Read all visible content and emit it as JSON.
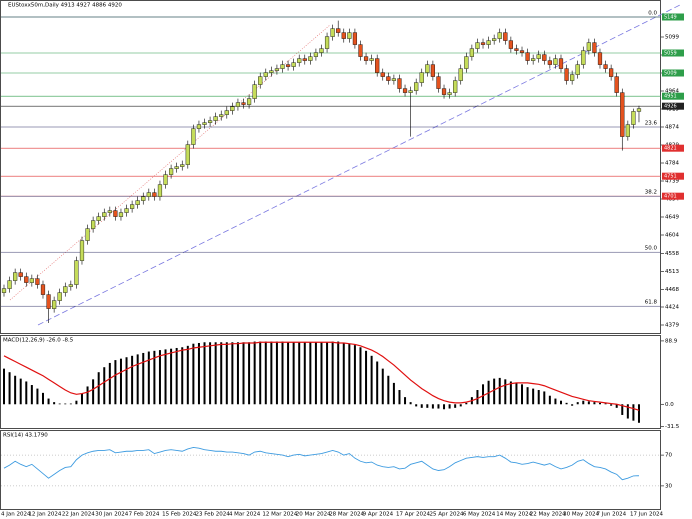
{
  "chart_data": [
    {
      "type": "candlestick",
      "title": "EUStoxx50m,Daily 4913 4927 4886 4920",
      "categories": [
        "4 Jan 2024",
        null,
        null,
        null,
        null,
        null,
        "12 Jan 2024",
        null,
        null,
        null,
        null,
        null,
        "22 Jan 2024",
        null,
        null,
        null,
        null,
        null,
        "30 Jan 2024",
        null,
        null,
        null,
        null,
        null,
        "7 Feb 2024",
        null,
        null,
        null,
        null,
        null,
        "15 Feb 2024",
        null,
        null,
        null,
        null,
        null,
        "23 Feb 2024",
        null,
        null,
        null,
        null,
        null,
        "4 Mar 2024",
        null,
        null,
        null,
        null,
        null,
        "12 Mar 2024",
        null,
        null,
        null,
        null,
        null,
        "20 Mar 2024",
        null,
        null,
        null,
        null,
        null,
        "28 Mar 2024",
        null,
        null,
        null,
        null,
        null,
        "9 Apr 2024",
        null,
        null,
        null,
        null,
        null,
        "17 Apr 2024",
        null,
        null,
        null,
        null,
        null,
        "25 Apr 2024",
        null,
        null,
        null,
        null,
        null,
        "6 May 2024",
        null,
        null,
        null,
        null,
        null,
        "14 May 2024",
        null,
        null,
        null,
        null,
        null,
        "22 May 2024",
        null,
        null,
        null,
        null,
        null,
        "30 May 2024",
        null,
        null,
        null,
        null,
        null,
        "7 Jun 2024",
        null,
        null,
        null,
        null,
        null,
        "17 Jun 2024"
      ],
      "open": [
        4460,
        4470,
        4490,
        4510,
        4500,
        4485,
        4495,
        4480,
        4455,
        4420,
        4440,
        4460,
        4475,
        4480,
        4540,
        4590,
        4620,
        4640,
        4650,
        4660,
        4665,
        4650,
        4660,
        4670,
        4680,
        4690,
        4700,
        4710,
        4700,
        4730,
        4755,
        4770,
        4775,
        4780,
        4830,
        4870,
        4880,
        4885,
        4890,
        4900,
        4905,
        4915,
        4925,
        4935,
        4930,
        4945,
        4980,
        5000,
        5010,
        5015,
        5020,
        5030,
        5025,
        5035,
        5045,
        5040,
        5050,
        5060,
        5070,
        5100,
        5120,
        5110,
        5095,
        5110,
        5080,
        5050,
        5040,
        5045,
        5010,
        5000,
        4990,
        4995,
        4970,
        4960,
        4965,
        4985,
        5010,
        5030,
        5000,
        4970,
        4955,
        4960,
        4990,
        5020,
        5050,
        5070,
        5085,
        5080,
        5090,
        5095,
        5110,
        5090,
        5070,
        5065,
        5060,
        5040,
        5045,
        5055,
        5040,
        5030,
        5045,
        5020,
        4990,
        5005,
        5030,
        5065,
        5085,
        5060,
        5030,
        5020,
        5000,
        4960,
        4850,
        4880,
        4913
      ],
      "high": [
        4480,
        4500,
        4520,
        4520,
        4510,
        4505,
        4505,
        4490,
        4465,
        4450,
        4470,
        4485,
        4490,
        4550,
        4600,
        4630,
        4650,
        4660,
        4670,
        4675,
        4675,
        4670,
        4680,
        4690,
        4700,
        4710,
        4720,
        4720,
        4740,
        4765,
        4780,
        4785,
        4790,
        4840,
        4880,
        4890,
        4895,
        4900,
        4910,
        4915,
        4925,
        4935,
        4945,
        4945,
        4955,
        4990,
        5010,
        5020,
        5025,
        5030,
        5040,
        5040,
        5045,
        5055,
        5055,
        5060,
        5070,
        5080,
        5110,
        5130,
        5140,
        5120,
        5120,
        5120,
        5090,
        5060,
        5055,
        5055,
        5020,
        5010,
        5005,
        5005,
        4980,
        4975,
        4995,
        5020,
        5040,
        5040,
        5010,
        4980,
        4970,
        5000,
        5030,
        5060,
        5080,
        5095,
        5095,
        5100,
        5105,
        5120,
        5120,
        5100,
        5080,
        5075,
        5070,
        5055,
        5065,
        5065,
        5050,
        5055,
        5055,
        5030,
        5015,
        5040,
        5075,
        5095,
        5095,
        5070,
        5040,
        5030,
        5010,
        4970,
        4890,
        4920,
        4927
      ],
      "low": [
        4450,
        4460,
        4480,
        4490,
        4475,
        4475,
        4470,
        4445,
        4384,
        4410,
        4430,
        4450,
        4465,
        4470,
        4530,
        4580,
        4610,
        4630,
        4640,
        4650,
        4640,
        4640,
        4650,
        4660,
        4670,
        4680,
        4690,
        4690,
        4690,
        4720,
        4745,
        4760,
        4765,
        4770,
        4820,
        4860,
        4870,
        4875,
        4880,
        4890,
        4895,
        4905,
        4915,
        4920,
        4920,
        4935,
        4970,
        4990,
        5000,
        5005,
        5010,
        5015,
        5015,
        5025,
        5030,
        5030,
        5040,
        5050,
        5060,
        5090,
        5100,
        5085,
        5085,
        5070,
        5040,
        5030,
        5030,
        5000,
        4990,
        4980,
        4980,
        4960,
        4950,
        4850,
        4955,
        4975,
        5000,
        4990,
        4960,
        4945,
        4945,
        4950,
        4980,
        5010,
        5040,
        5060,
        5070,
        5070,
        5080,
        5085,
        5080,
        5060,
        5055,
        5050,
        5030,
        5030,
        5035,
        5030,
        5020,
        5020,
        5010,
        4980,
        4980,
        4995,
        5020,
        5055,
        5050,
        5020,
        5010,
        4990,
        4950,
        4815,
        4840,
        4870,
        4886
      ],
      "close": [
        4470,
        4490,
        4510,
        4500,
        4485,
        4495,
        4480,
        4455,
        4420,
        4440,
        4460,
        4475,
        4480,
        4540,
        4590,
        4620,
        4640,
        4650,
        4660,
        4665,
        4650,
        4660,
        4670,
        4680,
        4690,
        4700,
        4710,
        4700,
        4730,
        4755,
        4770,
        4775,
        4780,
        4830,
        4870,
        4880,
        4885,
        4890,
        4900,
        4905,
        4915,
        4925,
        4935,
        4930,
        4945,
        4980,
        5000,
        5010,
        5015,
        5020,
        5030,
        5025,
        5035,
        5045,
        5040,
        5050,
        5060,
        5070,
        5100,
        5120,
        5110,
        5095,
        5110,
        5080,
        5050,
        5040,
        5045,
        5010,
        5000,
        4990,
        4995,
        4970,
        4960,
        4965,
        4985,
        5010,
        5030,
        5000,
        4970,
        4955,
        4960,
        4990,
        5020,
        5050,
        5070,
        5085,
        5080,
        5090,
        5095,
        5110,
        5090,
        5070,
        5065,
        5060,
        5040,
        5045,
        5055,
        5040,
        5030,
        5045,
        5020,
        4990,
        5005,
        5030,
        5065,
        5085,
        5060,
        5030,
        5020,
        5000,
        4960,
        4850,
        4880,
        4913,
        4920
      ],
      "up_color": "#c5dc5a",
      "down_color": "#e4531f",
      "ylim": [
        4359,
        5191.5
      ],
      "yticks": [
        4379,
        4424,
        4468,
        4513,
        4558,
        4604,
        4649,
        4694,
        4739,
        4784,
        4829,
        4874,
        4919,
        4964,
        5009,
        5054,
        5099
      ],
      "levels": [
        {
          "price": 5149,
          "color": "#2e9e4a"
        },
        {
          "price": 5059,
          "color": "#2e9e4a"
        },
        {
          "price": 5009,
          "color": "#2e9e4a"
        },
        {
          "price": 4951,
          "color": "#2e9e4a"
        },
        {
          "price": 4926,
          "color": "#222222"
        },
        {
          "price": 4821,
          "color": "#e03030"
        },
        {
          "price": 4751,
          "color": "#e03030"
        },
        {
          "price": 4701,
          "color": "#e03030"
        }
      ],
      "fib": [
        {
          "label": "0.0",
          "price": 5149
        },
        {
          "label": "23.6",
          "price": 4874
        },
        {
          "label": "38.2",
          "price": 4701
        },
        {
          "label": "50.0",
          "price": 4561
        },
        {
          "label": "61.8",
          "price": 4426
        }
      ]
    },
    {
      "type": "macd",
      "label": "MACD(12,26,9) -26.0 -8.5",
      "histogram": [
        50,
        45,
        40,
        36,
        32,
        27,
        22,
        16,
        8,
        3,
        1,
        1,
        1,
        5,
        15,
        25,
        35,
        45,
        52,
        58,
        62,
        64,
        66,
        68,
        70,
        72,
        74,
        75,
        76,
        77,
        78,
        79,
        80,
        82,
        85,
        86,
        87,
        87,
        87,
        87,
        87,
        87,
        87,
        87,
        87,
        88,
        88,
        88,
        88,
        88,
        88,
        87,
        87,
        87,
        87,
        87,
        87,
        87,
        87,
        88,
        88,
        86,
        85,
        83,
        80,
        75,
        68,
        60,
        50,
        40,
        30,
        20,
        10,
        3,
        -3,
        -5,
        -5,
        -6,
        -6,
        -7,
        -6,
        -5,
        -3,
        2,
        10,
        20,
        28,
        33,
        36,
        37,
        35,
        32,
        30,
        28,
        24,
        22,
        20,
        18,
        12,
        8,
        5,
        2,
        -2,
        3,
        5,
        4,
        3,
        2,
        1,
        -2,
        -5,
        -15,
        -20,
        -23,
        -26
      ],
      "signal": [
        68,
        64,
        60,
        56,
        52,
        48,
        44,
        40,
        35,
        30,
        25,
        20,
        16,
        14,
        15,
        17,
        21,
        26,
        31,
        36,
        41,
        45,
        49,
        53,
        56,
        59,
        62,
        65,
        68,
        70,
        72,
        74,
        76,
        77,
        79,
        80,
        81,
        82,
        83,
        84,
        84,
        85,
        85,
        86,
        86,
        86,
        87,
        87,
        87,
        87,
        87,
        87,
        87,
        87,
        87,
        87,
        87,
        87,
        87,
        87,
        86,
        86,
        85,
        84,
        82,
        79,
        76,
        72,
        67,
        61,
        55,
        48,
        41,
        34,
        28,
        22,
        17,
        12,
        8,
        5,
        3,
        2,
        2,
        3,
        5,
        8,
        12,
        16,
        20,
        24,
        27,
        29,
        30,
        30,
        30,
        29,
        28,
        26,
        23,
        20,
        17,
        14,
        11,
        9,
        7,
        5,
        4,
        3,
        2,
        1,
        0,
        -2,
        -4,
        -6,
        -8.5
      ],
      "hist_color": "#000000",
      "signal_color": "#e01010",
      "ylim": [
        -33.3,
        95.8
      ],
      "yticks": [
        88.9,
        {
          "value": 0,
          "label": "0.0"
        },
        -31.5
      ]
    },
    {
      "type": "line",
      "label": "RSI(14) 43.1790",
      "values": [
        53,
        57,
        62,
        58,
        55,
        58,
        52,
        46,
        40,
        45,
        50,
        54,
        55,
        64,
        70,
        73,
        75,
        76,
        76,
        77,
        73,
        74,
        75,
        75,
        76,
        76,
        77,
        72,
        74,
        76,
        77,
        76,
        75,
        78,
        80,
        79,
        77,
        76,
        75,
        75,
        74,
        74,
        73,
        72,
        70,
        74,
        75,
        73,
        72,
        71,
        70,
        68,
        70,
        71,
        69,
        70,
        71,
        72,
        74,
        76,
        74,
        70,
        72,
        66,
        62,
        60,
        61,
        57,
        55,
        54,
        55,
        52,
        53,
        58,
        60,
        62,
        57,
        52,
        50,
        51,
        55,
        60,
        63,
        66,
        67,
        68,
        67,
        68,
        68,
        70,
        66,
        61,
        60,
        58,
        59,
        61,
        59,
        57,
        59,
        55,
        52,
        54,
        57,
        62,
        64,
        59,
        55,
        54,
        52,
        48,
        45,
        38,
        40,
        43,
        43.179
      ],
      "color": "#3d9be0",
      "ylim": [
        0,
        100
      ],
      "yticks": [
        70,
        30
      ]
    }
  ]
}
